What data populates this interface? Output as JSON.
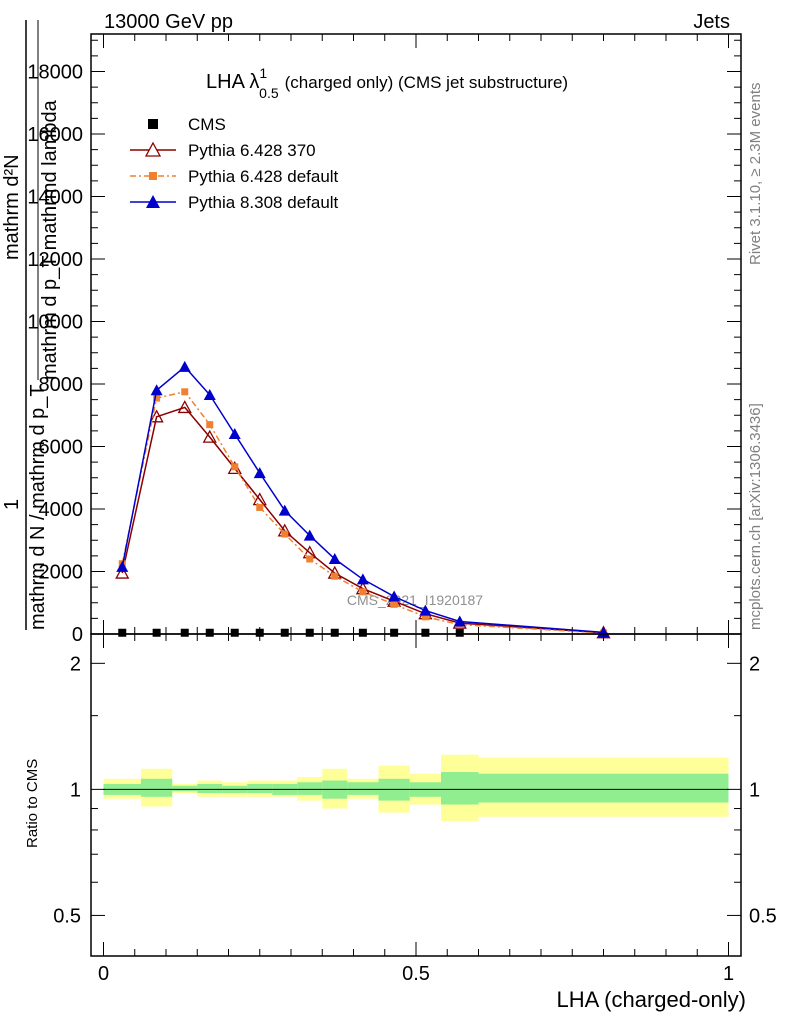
{
  "header": {
    "left": "13000 GeV pp",
    "right": "Jets"
  },
  "side_labels": {
    "rivet": "Rivet 3.1.10, ≥ 2.3M events",
    "mcplots": "mcplots.cern.ch [arXiv:1306.3436]"
  },
  "watermark": "CMS_2021_I1920187",
  "chart_data": [
    {
      "type": "line",
      "title_main": "LHA λ",
      "title_sup": "1",
      "title_sub": "0.5",
      "title_rest": "(charged only) (CMS jet substructure)",
      "ylabel_lines": [
        "mathrm d^{2}N",
        "mathrm d p_{T} mathrm d lambda",
        "1",
        "mathrm d N / mathrm d p_{T}"
      ],
      "ylabel_main": "1",
      "ylabel_frac_num": "mathrm d²N",
      "ylabel_frac_num_full": "mathrm d p_T mathrmd lambda",
      "ylabel_left_num": "mathrm d N / mathrm d p_T",
      "ylim": [
        0,
        19200
      ],
      "xlim": [
        -0.02,
        1.02
      ],
      "yticks": [
        {
          "value": 0,
          "label": "0"
        },
        {
          "value": 2000,
          "label": "2000"
        },
        {
          "value": 4000,
          "label": "4000"
        },
        {
          "value": 6000,
          "label": "6000"
        },
        {
          "value": 8000,
          "label": "8000"
        },
        {
          "value": 10000,
          "label": "10000"
        },
        {
          "value": 12000,
          "label": "12000"
        },
        {
          "value": 14000,
          "label": "14000"
        },
        {
          "value": 16000,
          "label": "16000"
        },
        {
          "value": 18000,
          "label": "18000"
        }
      ],
      "legend": [
        "CMS",
        "Pythia 6.428 370",
        "Pythia 6.428 default",
        "Pythia 8.308 default"
      ],
      "x": [
        0.03,
        0.085,
        0.13,
        0.17,
        0.21,
        0.25,
        0.29,
        0.33,
        0.37,
        0.415,
        0.465,
        0.515,
        0.57,
        0.8
      ],
      "series": [
        {
          "name": "CMS",
          "color": "#000000",
          "marker": "square",
          "x": [
            0.03,
            0.085,
            0.13,
            0.17,
            0.21,
            0.25,
            0.29,
            0.33,
            0.37,
            0.415,
            0.465,
            0.515,
            0.57
          ],
          "values": [
            40,
            40,
            40,
            40,
            40,
            40,
            40,
            40,
            40,
            40,
            40,
            40,
            40
          ]
        },
        {
          "name": "Pythia 6.428 370",
          "color": "#8b0000",
          "marker": "triangle-open",
          "x": [
            0.03,
            0.085,
            0.13,
            0.17,
            0.21,
            0.25,
            0.29,
            0.33,
            0.37,
            0.415,
            0.465,
            0.515,
            0.57,
            0.8
          ],
          "values": [
            1950,
            6950,
            7250,
            6300,
            5300,
            4300,
            3300,
            2600,
            1950,
            1450,
            1050,
            650,
            350,
            40
          ]
        },
        {
          "name": "Pythia 6.428 default",
          "color": "#f08030",
          "marker": "square-small",
          "dashed": true,
          "x": [
            0.03,
            0.085,
            0.13,
            0.17,
            0.21,
            0.25,
            0.29,
            0.33,
            0.37,
            0.415,
            0.465,
            0.515,
            0.57,
            0.8
          ],
          "values": [
            2250,
            7550,
            7750,
            6700,
            5350,
            4050,
            3200,
            2400,
            1850,
            1350,
            950,
            550,
            300,
            30
          ]
        },
        {
          "name": "Pythia 8.308 default",
          "color": "#0000cc",
          "marker": "triangle-filled",
          "x": [
            0.03,
            0.085,
            0.13,
            0.17,
            0.21,
            0.25,
            0.29,
            0.33,
            0.37,
            0.415,
            0.465,
            0.515,
            0.57,
            0.8
          ],
          "values": [
            2150,
            7800,
            8550,
            7650,
            6400,
            5150,
            3950,
            3150,
            2400,
            1750,
            1200,
            750,
            400,
            50
          ]
        }
      ]
    },
    {
      "type": "ratio",
      "ylabel": "Ratio to CMS",
      "xlabel": "LHA (charged-only)",
      "ylim": [
        0.4,
        2.35
      ],
      "log": true,
      "yticks": [
        {
          "value": 0.5,
          "label": "0.5"
        },
        {
          "value": 1,
          "label": "1"
        },
        {
          "value": 2,
          "label": "2"
        }
      ],
      "xticks": [
        {
          "value": 0,
          "label": "0"
        },
        {
          "value": 0.5,
          "label": "0.5"
        },
        {
          "value": 1,
          "label": "1"
        }
      ],
      "band_colors": {
        "inner": "#90ee90",
        "outer": "#ffff99"
      },
      "bins": [
        {
          "lo": 0.0,
          "hi": 0.06,
          "inner": [
            0.97,
            1.03
          ],
          "outer": [
            0.95,
            1.06
          ]
        },
        {
          "lo": 0.06,
          "hi": 0.11,
          "inner": [
            0.96,
            1.06
          ],
          "outer": [
            0.91,
            1.12
          ]
        },
        {
          "lo": 0.11,
          "hi": 0.15,
          "inner": [
            0.99,
            1.02
          ],
          "outer": [
            0.98,
            1.03
          ]
        },
        {
          "lo": 0.15,
          "hi": 0.19,
          "inner": [
            0.98,
            1.03
          ],
          "outer": [
            0.96,
            1.05
          ]
        },
        {
          "lo": 0.19,
          "hi": 0.23,
          "inner": [
            0.98,
            1.02
          ],
          "outer": [
            0.96,
            1.04
          ]
        },
        {
          "lo": 0.23,
          "hi": 0.27,
          "inner": [
            0.98,
            1.03
          ],
          "outer": [
            0.96,
            1.05
          ]
        },
        {
          "lo": 0.27,
          "hi": 0.31,
          "inner": [
            0.97,
            1.03
          ],
          "outer": [
            0.96,
            1.05
          ]
        },
        {
          "lo": 0.31,
          "hi": 0.35,
          "inner": [
            0.97,
            1.04
          ],
          "outer": [
            0.94,
            1.07
          ]
        },
        {
          "lo": 0.35,
          "hi": 0.39,
          "inner": [
            0.95,
            1.05
          ],
          "outer": [
            0.9,
            1.12
          ]
        },
        {
          "lo": 0.39,
          "hi": 0.44,
          "inner": [
            0.97,
            1.04
          ],
          "outer": [
            0.95,
            1.06
          ]
        },
        {
          "lo": 0.44,
          "hi": 0.49,
          "inner": [
            0.94,
            1.06
          ],
          "outer": [
            0.88,
            1.14
          ]
        },
        {
          "lo": 0.49,
          "hi": 0.54,
          "inner": [
            0.96,
            1.04
          ],
          "outer": [
            0.92,
            1.09
          ]
        },
        {
          "lo": 0.54,
          "hi": 0.6,
          "inner": [
            0.92,
            1.1
          ],
          "outer": [
            0.84,
            1.21
          ]
        },
        {
          "lo": 0.6,
          "hi": 1.0,
          "inner": [
            0.93,
            1.09
          ],
          "outer": [
            0.86,
            1.19
          ]
        }
      ]
    }
  ]
}
